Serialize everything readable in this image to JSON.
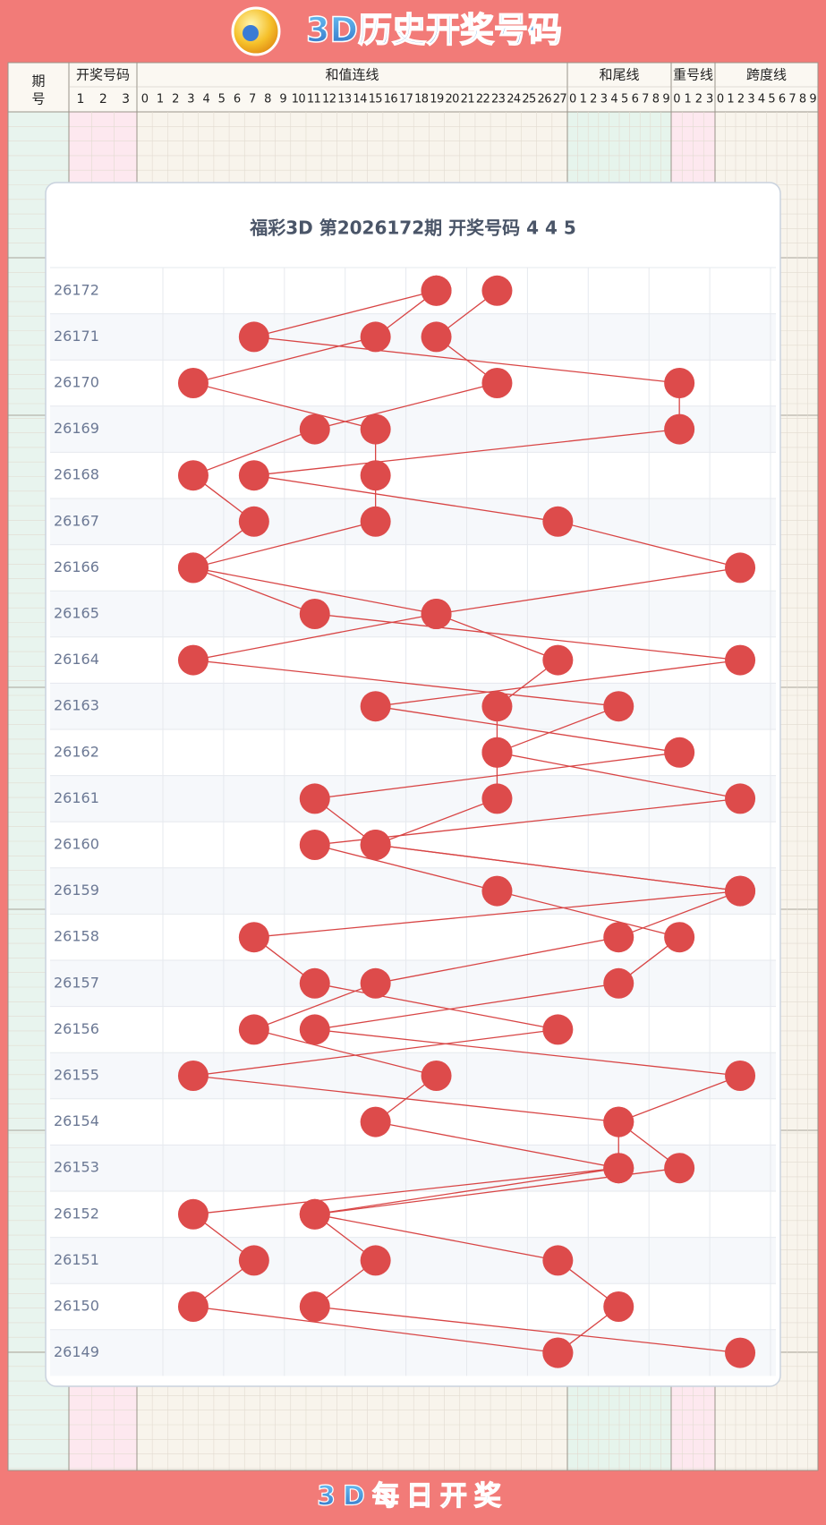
{
  "header": {
    "title": "3D历史开奖号码"
  },
  "footer": {
    "title": "3D每日开奖"
  },
  "table": {
    "period_label": [
      "期",
      "号"
    ],
    "groups": [
      {
        "label": "开奖号码",
        "columns": [
          1,
          2,
          3
        ]
      },
      {
        "label": "和值连线",
        "columns": [
          0,
          1,
          2,
          3,
          4,
          5,
          6,
          7,
          8,
          9,
          10,
          11,
          12,
          13,
          14,
          15,
          16,
          17,
          18,
          19,
          20,
          21,
          22,
          23,
          24,
          25,
          26,
          27
        ]
      },
      {
        "label": "和尾线",
        "columns": [
          0,
          1,
          2,
          3,
          4,
          5,
          6,
          7,
          8,
          9
        ]
      },
      {
        "label": "重号线",
        "columns": [
          0,
          1,
          2,
          3
        ]
      },
      {
        "label": "跨度线",
        "columns": [
          0,
          1,
          2,
          3,
          4,
          5,
          6,
          7,
          8,
          9
        ]
      }
    ]
  },
  "card": {
    "title": "福彩3D 第2026172期  开奖号码 4 4 5",
    "rows": [
      {
        "period": "26172",
        "digits": [
          4,
          4,
          5
        ]
      },
      {
        "period": "26171",
        "digits": [
          1,
          3,
          4
        ]
      },
      {
        "period": "26170",
        "digits": [
          8,
          0,
          5
        ]
      },
      {
        "period": "26169",
        "digits": [
          8,
          3,
          2
        ]
      },
      {
        "period": "26168",
        "digits": [
          1,
          3,
          0
        ]
      },
      {
        "period": "26167",
        "digits": [
          6,
          3,
          1
        ]
      },
      {
        "period": "26166",
        "digits": [
          9,
          0,
          0
        ]
      },
      {
        "period": "26165",
        "digits": [
          4,
          4,
          2
        ]
      },
      {
        "period": "26164",
        "digits": [
          0,
          6,
          9
        ]
      },
      {
        "period": "26163",
        "digits": [
          7,
          5,
          3
        ]
      },
      {
        "period": "26162",
        "digits": [
          5,
          5,
          8
        ]
      },
      {
        "period": "26161",
        "digits": [
          5,
          9,
          2
        ]
      },
      {
        "period": "26160",
        "digits": [
          3,
          2,
          3
        ]
      },
      {
        "period": "26159",
        "digits": [
          9,
          5,
          9
        ]
      },
      {
        "period": "26158",
        "digits": [
          1,
          8,
          7
        ]
      },
      {
        "period": "26157",
        "digits": [
          2,
          7,
          3
        ]
      },
      {
        "period": "26156",
        "digits": [
          6,
          2,
          1
        ]
      },
      {
        "period": "26155",
        "digits": [
          0,
          9,
          4
        ]
      },
      {
        "period": "26154",
        "digits": [
          7,
          7,
          3
        ]
      },
      {
        "period": "26153",
        "digits": [
          7,
          8,
          7
        ]
      },
      {
        "period": "26152",
        "digits": [
          0,
          2,
          2
        ]
      },
      {
        "period": "26151",
        "digits": [
          1,
          3,
          6
        ]
      },
      {
        "period": "26150",
        "digits": [
          0,
          2,
          7
        ]
      },
      {
        "period": "26149",
        "digits": [
          6,
          9,
          6
        ]
      }
    ]
  }
}
